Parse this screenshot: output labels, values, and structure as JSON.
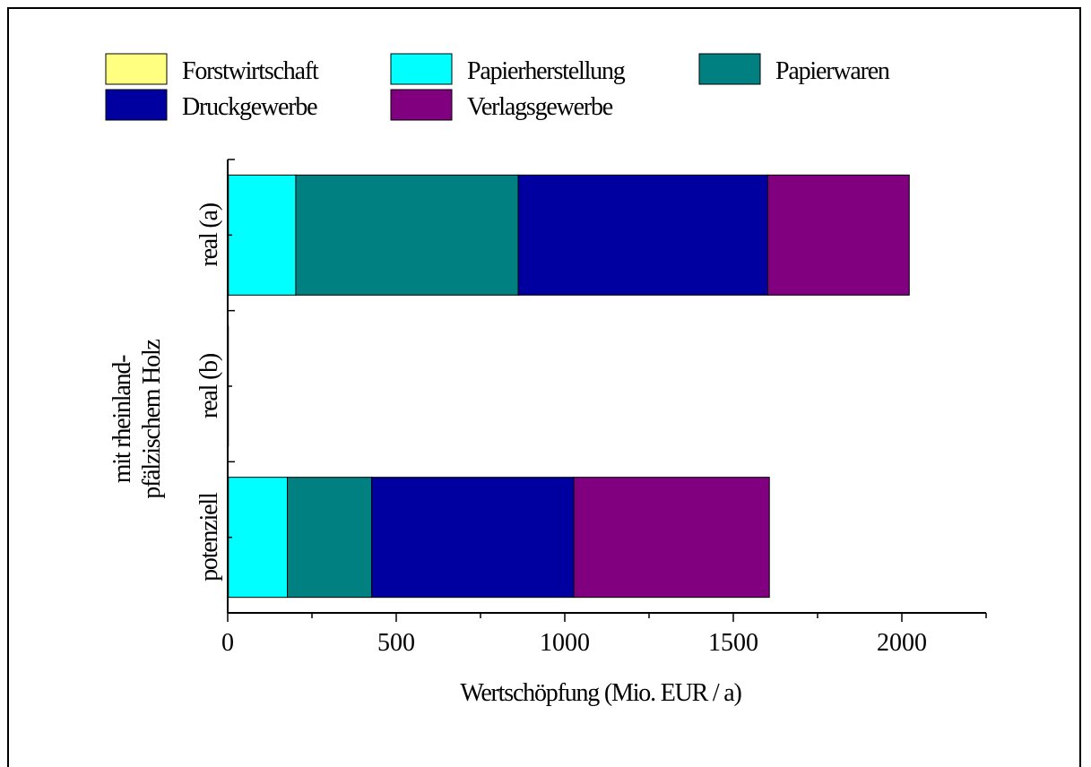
{
  "chart_data": {
    "type": "bar",
    "orientation": "horizontal",
    "stacked": true,
    "title": "",
    "xlabel": "Wertschöpfung (Mio. EUR / a)",
    "ylabel_lines": [
      "mit rheinland-",
      "pfälzischem Holz"
    ],
    "xlim": [
      0,
      2250
    ],
    "x_ticks": [
      0,
      500,
      1000,
      1500,
      2000
    ],
    "x_tick_labels": [
      "0",
      "500",
      "1000",
      "1500",
      "2000"
    ],
    "categories": [
      "real (a)",
      "real (b)",
      "potenziell"
    ],
    "series": [
      {
        "name": "Forstwirtschaft",
        "color": "#FFFF80",
        "values": [
          2,
          2,
          2
        ]
      },
      {
        "name": "Papierherstellung",
        "color": "#00FFFF",
        "values": [
          200,
          0,
          175
        ]
      },
      {
        "name": "Papierwaren",
        "color": "#008080",
        "values": [
          660,
          0,
          250
        ]
      },
      {
        "name": "Druckgewerbe",
        "color": "#0000A0",
        "values": [
          740,
          0,
          600
        ]
      },
      {
        "name": "Verlagsgewerbe",
        "color": "#800080",
        "values": [
          420,
          0,
          580
        ]
      }
    ],
    "grid": false,
    "legend_position": "top"
  }
}
